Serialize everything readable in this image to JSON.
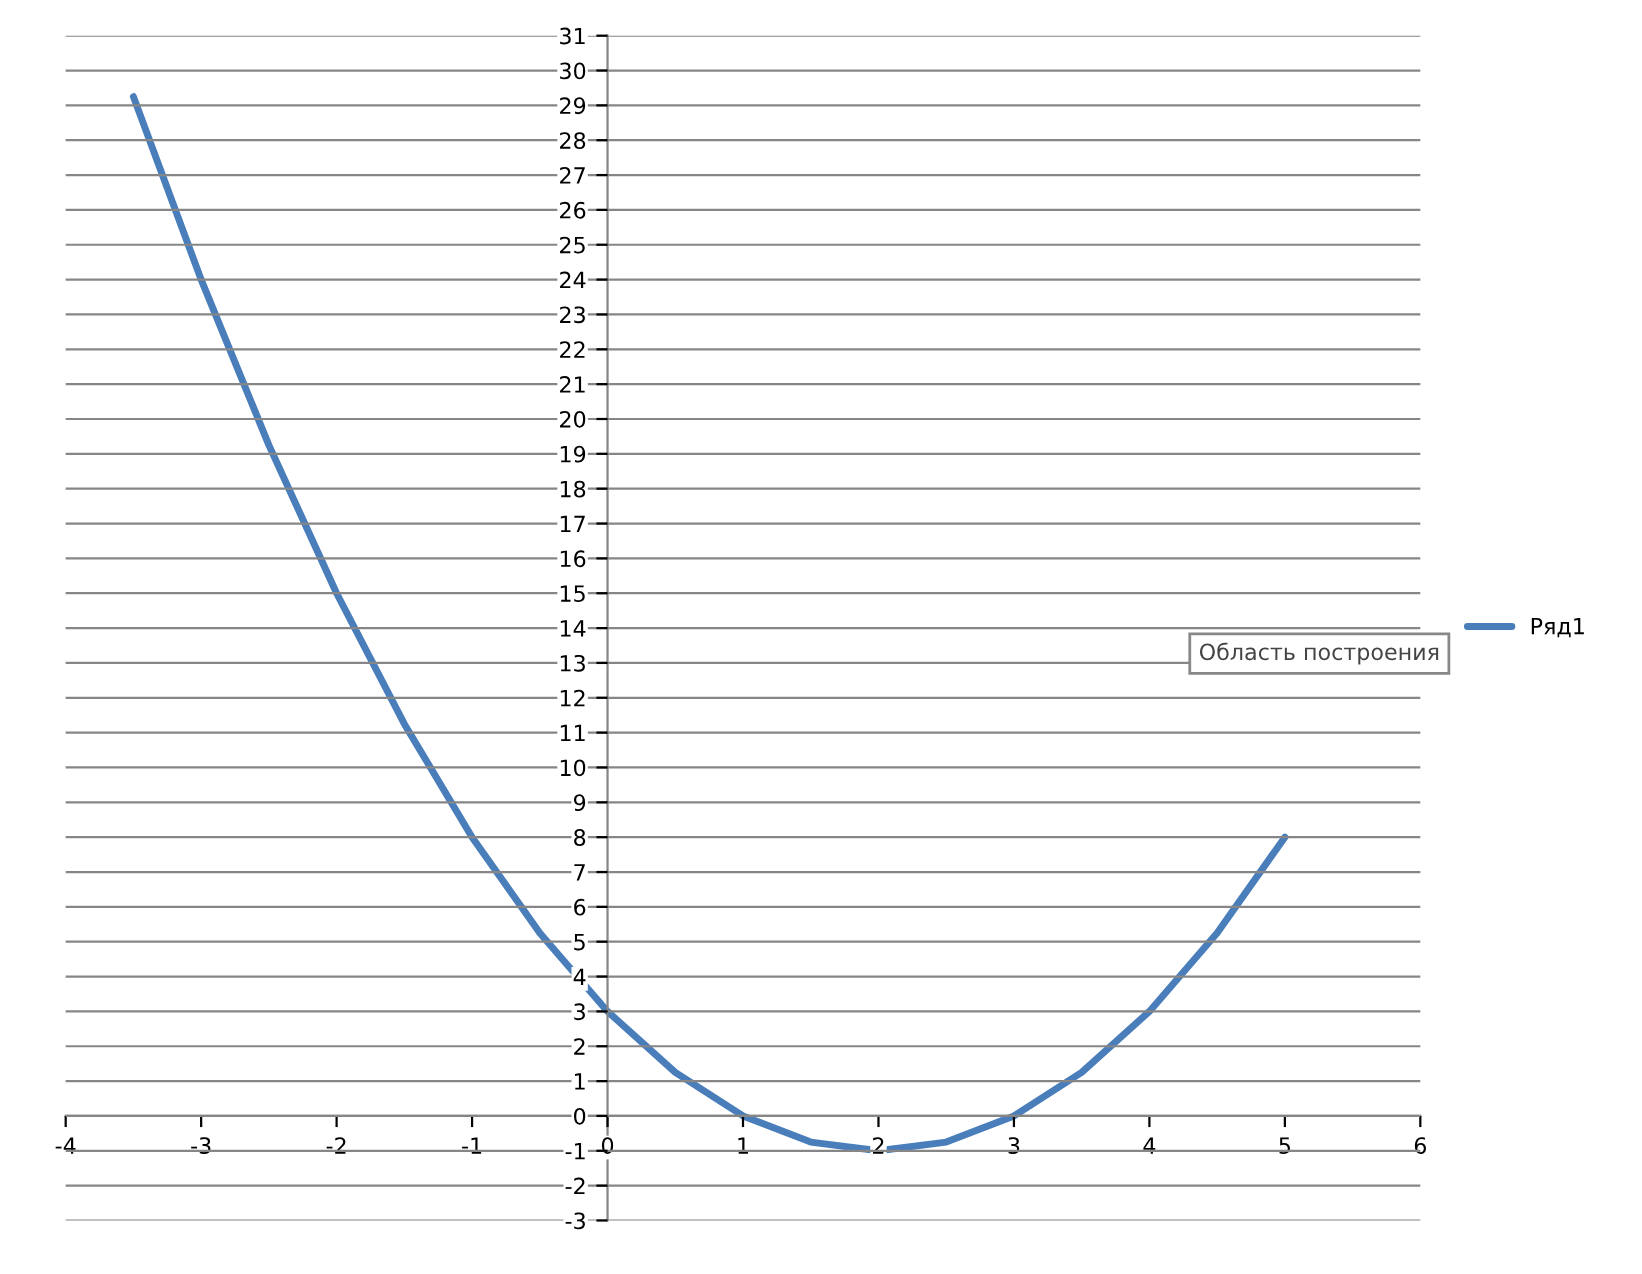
{
  "chart_data": {
    "type": "line",
    "x": [
      -3.5,
      -3,
      -2.5,
      -2,
      -1.5,
      -1,
      -0.5,
      0,
      0.5,
      1,
      1.5,
      2,
      2.5,
      3,
      3.5,
      4,
      4.5,
      5
    ],
    "series": [
      {
        "name": "Ряд1",
        "color": "#4a7ebb",
        "values": [
          29.25,
          24,
          19.25,
          15,
          11.25,
          8,
          5.25,
          3,
          1.25,
          0,
          -0.75,
          -1,
          -0.75,
          0,
          1.25,
          3,
          5.25,
          8
        ]
      }
    ],
    "xlim": [
      -4,
      6
    ],
    "ylim": [
      -3,
      31
    ],
    "xticks": [
      -4,
      -3,
      -2,
      -1,
      0,
      1,
      2,
      3,
      4,
      5,
      6
    ],
    "yticks": [
      -3,
      -2,
      -1,
      0,
      1,
      2,
      3,
      4,
      5,
      6,
      7,
      8,
      9,
      10,
      11,
      12,
      13,
      14,
      15,
      16,
      17,
      18,
      19,
      20,
      21,
      22,
      23,
      24,
      25,
      26,
      27,
      28,
      29,
      30,
      31
    ],
    "grid": "y",
    "legend": "right",
    "marker": "none",
    "line_style": "solid",
    "annotations": [
      "Область построения"
    ]
  }
}
